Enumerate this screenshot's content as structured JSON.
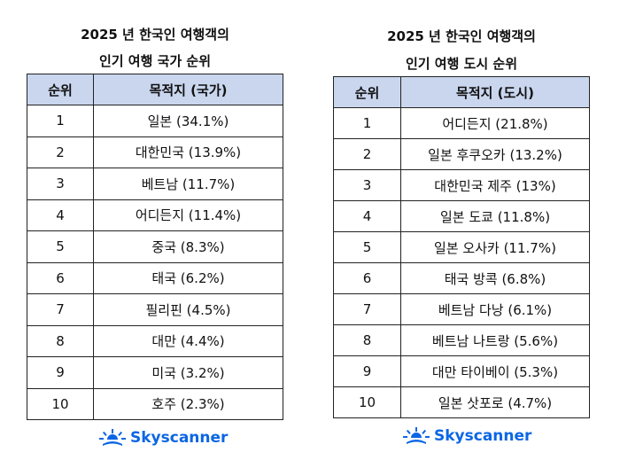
{
  "left": {
    "title": [
      "2025 년 한국인 여행객의",
      "인기 여행 국가 순위"
    ],
    "table": {
      "header": [
        "순위",
        "목적지 (국가)"
      ],
      "rows": [
        [
          "1",
          "일본 (34.1%)"
        ],
        [
          "2",
          "대한민국 (13.9%)"
        ],
        [
          "3",
          "베트남 (11.7%)"
        ],
        [
          "4",
          "어디든지 (11.4%)"
        ],
        [
          "5",
          "중국 (8.3%)"
        ],
        [
          "6",
          "태국 (6.2%)"
        ],
        [
          "7",
          "필리핀 (4.5%)"
        ],
        [
          "8",
          "대만 (4.4%)"
        ],
        [
          "9",
          "미국 (3.2%)"
        ],
        [
          "10",
          "호주 (2.3%)"
        ]
      ]
    },
    "logo": "Skyscanner"
  },
  "right": {
    "title": [
      "2025 년 한국인 여행객의",
      "인기 여행 도시 순위"
    ],
    "table": {
      "header": [
        "순위",
        "목적지 (도시)"
      ],
      "rows": [
        [
          "1",
          "어디든지 (21.8%)"
        ],
        [
          "2",
          "일본 후쿠오카 (13.2%)"
        ],
        [
          "3",
          "대한민국 제주 (13%)"
        ],
        [
          "4",
          "일본 도쿄 (11.8%)"
        ],
        [
          "5",
          "일본 오사카 (11.7%)"
        ],
        [
          "6",
          "태국 방콕 (6.8%)"
        ],
        [
          "7",
          "베트남 다낭 (6.1%)"
        ],
        [
          "8",
          "베트남 나트랑 (5.6%)"
        ],
        [
          "9",
          "대만 타이베이 (5.3%)"
        ],
        [
          "10",
          "일본 삿포로 (4.7%)"
        ]
      ]
    },
    "logo": "Skyscanner"
  }
}
